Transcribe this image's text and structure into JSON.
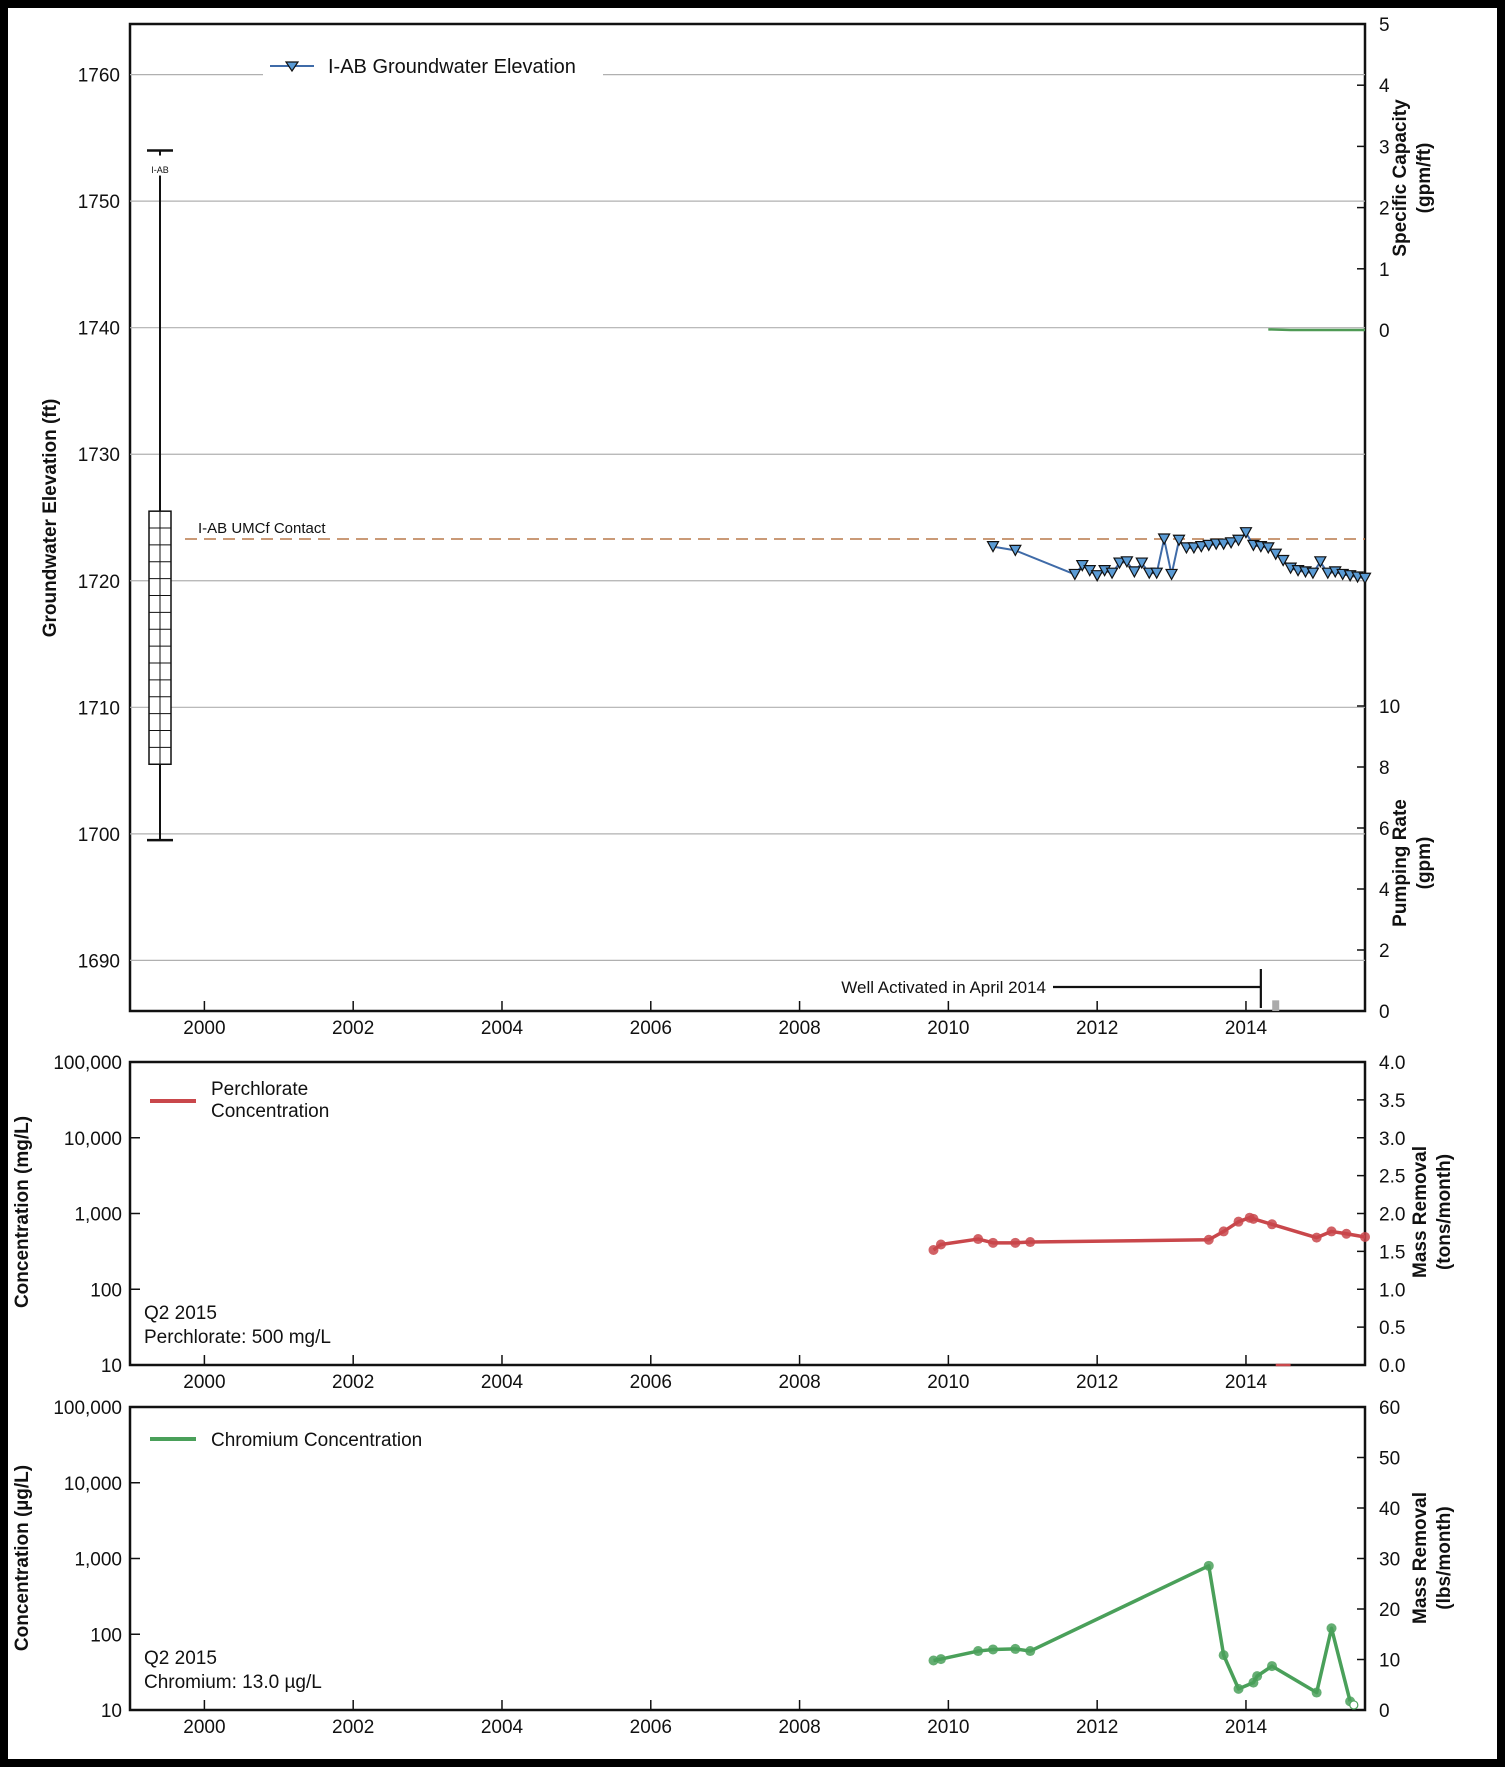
{
  "chart_data": [
    {
      "id": "groundwater",
      "type": "line",
      "title": "",
      "xlabel": "",
      "ylabel": "Groundwater Elevation (ft)",
      "x_ticks": [
        "2000",
        "2002",
        "2004",
        "2006",
        "2008",
        "2010",
        "2012",
        "2014"
      ],
      "x_range": [
        1999.0,
        2015.6
      ],
      "ylim": [
        1686,
        1764
      ],
      "y_ticks": [
        1690,
        1700,
        1710,
        1720,
        1730,
        1740,
        1750,
        1760
      ],
      "y_tick_labels": [
        "1690",
        "1700",
        "1710",
        "1720",
        "1730",
        "1740",
        "1750",
        "1760"
      ],
      "grid": "horizontal",
      "legend": {
        "position": "top-left",
        "entries": [
          "I-AB Groundwater Elevation"
        ]
      },
      "right_axis_upper": {
        "label_line1": "Specific Capacity",
        "label_line2": "(gpm/ft)",
        "ticks": [
          "0",
          "1",
          "2",
          "3",
          "4",
          "5"
        ],
        "range": [
          0,
          5
        ]
      },
      "right_axis_lower": {
        "label_line1": "Pumping Rate",
        "label_line2": "(gpm)",
        "ticks": [
          "0",
          "2",
          "4",
          "6",
          "8",
          "10"
        ],
        "range": [
          0,
          10
        ]
      },
      "well_construction": {
        "label": "I-AB",
        "top_elevation": 1754,
        "bottom_elevation": 1699.5,
        "screen_top": 1725.5,
        "screen_bottom": 1705.5
      },
      "contact_line": {
        "label": "I-AB UMCf Contact",
        "elevation": 1723.3
      },
      "annotation": {
        "text": "Well Activated in April 2014",
        "x": 2014.2
      },
      "series": [
        {
          "name": "I-AB Groundwater Elevation",
          "color": "#3f6ba8",
          "marker": "triangle-down",
          "x": [
            2010.6,
            2010.9,
            2011.7,
            2011.8,
            2011.9,
            2012.0,
            2012.1,
            2012.2,
            2012.3,
            2012.4,
            2012.5,
            2012.6,
            2012.7,
            2012.8,
            2012.9,
            2013.0,
            2013.1,
            2013.2,
            2013.3,
            2013.4,
            2013.5,
            2013.6,
            2013.7,
            2013.8,
            2013.9,
            2014.0,
            2014.1,
            2014.2,
            2014.3,
            2014.4,
            2014.5,
            2014.6,
            2014.7,
            2014.8,
            2014.9,
            2015.0,
            2015.1,
            2015.2,
            2015.3,
            2015.4,
            2015.5,
            2015.6
          ],
          "y": [
            1722.7,
            1722.4,
            1720.5,
            1721.2,
            1720.8,
            1720.4,
            1720.8,
            1720.6,
            1721.4,
            1721.5,
            1720.7,
            1721.4,
            1720.6,
            1720.6,
            1723.3,
            1720.5,
            1723.2,
            1722.6,
            1722.6,
            1722.7,
            1722.8,
            1722.9,
            1722.9,
            1723.0,
            1723.2,
            1723.8,
            1722.8,
            1722.7,
            1722.6,
            1722.1,
            1721.6,
            1721.0,
            1720.8,
            1720.7,
            1720.6,
            1721.5,
            1720.6,
            1720.7,
            1720.5,
            1720.4,
            1720.3,
            1720.2
          ]
        },
        {
          "name": "Specific Capacity",
          "color": "#4f9a55",
          "axis": "right_upper",
          "x": [
            2014.3,
            2014.6,
            2015.0,
            2015.6
          ],
          "y": [
            0.01,
            0.0,
            0.0,
            0.0
          ]
        },
        {
          "name": "Pumping Rate",
          "color": "#aaaaaa",
          "axis": "right_lower",
          "type": "bar",
          "x": [
            2014.4
          ],
          "y": [
            0.35
          ]
        }
      ]
    },
    {
      "id": "perchlorate",
      "type": "line",
      "title": "",
      "xlabel": "",
      "ylabel": "Concentration (mg/L)",
      "scale": "log",
      "x_ticks": [
        "2000",
        "2002",
        "2004",
        "2006",
        "2008",
        "2010",
        "2012",
        "2014"
      ],
      "x_range": [
        1999.0,
        2015.6
      ],
      "ylim": [
        10,
        100000
      ],
      "y_ticks": [
        10,
        100,
        1000,
        10000,
        100000
      ],
      "y_tick_labels": [
        "10",
        "100",
        "1,000",
        "10,000",
        "100,000"
      ],
      "legend": {
        "position": "top-left",
        "entries": [
          "Perchlorate Concentration"
        ],
        "entry_line1": "Perchlorate",
        "entry_line2": "Concentration"
      },
      "right_axis": {
        "label_line1": "Mass Removal",
        "label_line2": "(tons/month)",
        "ticks": [
          "0.0",
          "0.5",
          "1.0",
          "1.5",
          "2.0",
          "2.5",
          "3.0",
          "3.5",
          "4.0"
        ],
        "range": [
          0,
          4
        ]
      },
      "note_line1": "Q2 2015",
      "note_line2": "Perchlorate: 500 mg/L",
      "series": [
        {
          "name": "Perchlorate Concentration",
          "color": "#c9474b",
          "x": [
            2009.8,
            2009.9,
            2010.4,
            2010.6,
            2010.9,
            2011.1,
            2013.5,
            2013.7,
            2013.9,
            2014.05,
            2014.1,
            2014.35,
            2014.95,
            2015.15,
            2015.35,
            2015.6
          ],
          "y": [
            330,
            390,
            460,
            410,
            410,
            420,
            450,
            580,
            780,
            880,
            850,
            720,
            480,
            580,
            540,
            490
          ]
        },
        {
          "name": "Mass Removal",
          "color": "#c9474b",
          "axis": "right",
          "x": [
            2014.4,
            2014.6
          ],
          "y": [
            0.0,
            0.0
          ]
        }
      ]
    },
    {
      "id": "chromium",
      "type": "line",
      "title": "",
      "xlabel": "",
      "ylabel": "Concentration (µg/L)",
      "scale": "log",
      "x_ticks": [
        "2000",
        "2002",
        "2004",
        "2006",
        "2008",
        "2010",
        "2012",
        "2014"
      ],
      "x_range": [
        1999.0,
        2015.6
      ],
      "ylim": [
        10,
        100000
      ],
      "y_ticks": [
        10,
        100,
        1000,
        10000,
        100000
      ],
      "y_tick_labels": [
        "10",
        "100",
        "1,000",
        "10,000",
        "100,000"
      ],
      "legend": {
        "position": "top-left",
        "entries": [
          "Chromium Concentration"
        ]
      },
      "right_axis": {
        "label_line1": "Mass Removal",
        "label_line2": "(lbs/month)",
        "ticks": [
          "0",
          "10",
          "20",
          "30",
          "40",
          "50",
          "60"
        ],
        "range": [
          0,
          60
        ]
      },
      "note_line1": "Q2 2015",
      "note_line2": "Chromium: 13.0 µg/L",
      "series": [
        {
          "name": "Chromium Concentration",
          "color": "#4aa05a",
          "x": [
            2009.8,
            2009.9,
            2010.4,
            2010.6,
            2010.9,
            2011.1,
            2013.5,
            2013.7,
            2013.9,
            2014.1,
            2014.15,
            2014.35,
            2014.95,
            2015.15,
            2015.4
          ],
          "y": [
            45,
            47,
            60,
            63,
            64,
            60,
            800,
            53,
            19,
            23,
            28,
            38,
            17,
            120,
            13
          ]
        },
        {
          "name": "Mass Removal",
          "color": "#4aa05a",
          "axis": "right",
          "x": [
            2015.45
          ],
          "y": [
            1.0
          ]
        }
      ]
    }
  ]
}
